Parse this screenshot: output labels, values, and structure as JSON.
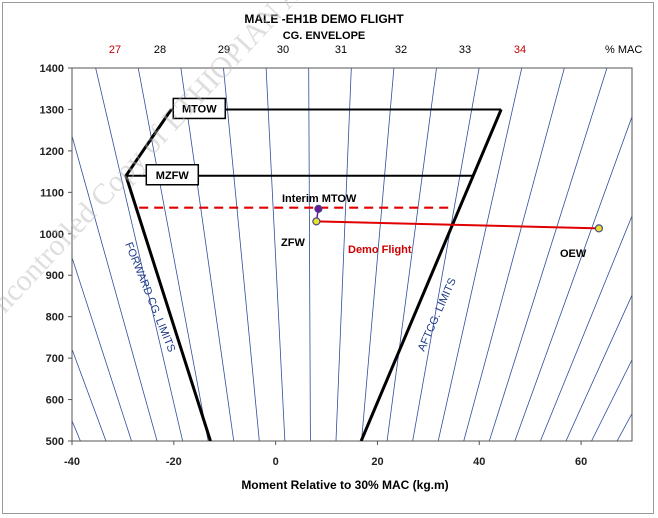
{
  "chart_data": {
    "type": "line",
    "title": "MALE -EH1B DEMO FLIGHT",
    "subtitle": "CG. ENVELOPE",
    "xlabel": "Moment Relative to 30% MAC (kg.m)",
    "ylabel": "",
    "xlim": [
      -40,
      70
    ],
    "ylim": [
      500,
      1400
    ],
    "x_ticks": [
      -40,
      -20,
      0,
      20,
      40,
      60
    ],
    "y_ticks": [
      500,
      600,
      700,
      800,
      900,
      1000,
      1100,
      1200,
      1300,
      1400
    ],
    "mac_unit_label": "% MAC",
    "mac_labels": [
      {
        "value": 27,
        "text": "27",
        "color": "#c00000"
      },
      {
        "value": 28,
        "text": "28",
        "color": "#000000"
      },
      {
        "value": 29,
        "text": "29",
        "color": "#000000"
      },
      {
        "value": 30,
        "text": "30",
        "color": "#000000"
      },
      {
        "value": 31,
        "text": "31",
        "color": "#000000"
      },
      {
        "value": 32,
        "text": "32",
        "color": "#000000"
      },
      {
        "value": 33,
        "text": "33",
        "color": "#000000"
      },
      {
        "value": 34,
        "text": "34",
        "color": "#c00000"
      }
    ],
    "mac_line_count": 24,
    "envelope": {
      "forward_limit": [
        [
          -12.8,
          500
        ],
        [
          -29.4,
          1140
        ],
        [
          -20.5,
          1300
        ]
      ],
      "aft_limit": [
        [
          16.8,
          500
        ],
        [
          44.3,
          1300
        ]
      ],
      "mtow_line": {
        "y": 1300,
        "x": [
          -20.5,
          44.3
        ]
      },
      "mzfw_line": {
        "y": 1140,
        "x": [
          -29.4,
          38.8
        ]
      },
      "color": "#000000"
    },
    "weight_box_labels": [
      {
        "text": "MTOW",
        "x": -20.5,
        "y": 1300
      },
      {
        "text": "MZFW",
        "x": -25.8,
        "y": 1140
      }
    ],
    "series": [
      {
        "name": "Demo Flight",
        "color": "#e00000",
        "style": "solid",
        "points": [
          [
            63.5,
            1013
          ],
          [
            8.0,
            1030
          ]
        ]
      },
      {
        "name": "",
        "color": "#e00000",
        "style": "dashed",
        "points": [
          [
            -26.8,
            1063
          ],
          [
            35.0,
            1063
          ]
        ]
      }
    ],
    "points": [
      {
        "label": "OEW",
        "x": 63.5,
        "y": 1013,
        "color": "#e8e030"
      },
      {
        "label": "ZFW",
        "x": 8.0,
        "y": 1030,
        "color": "#e8e030"
      },
      {
        "label": "Interim MTOW",
        "x": 8.4,
        "y": 1060,
        "color": "#6a1b9a"
      }
    ],
    "annotations": [
      {
        "text": "FORWARD  CG. LIMITS",
        "color": "#1f3a8a"
      },
      {
        "text": "AFTCG. LIMITS",
        "color": "#1f3a8a"
      },
      {
        "text": "Demo Flight",
        "color": "#d00000"
      }
    ],
    "grid": true,
    "legend": "none"
  },
  "watermark": "Uncontrolled Copy of ETHIOPIAN AIRLINES"
}
